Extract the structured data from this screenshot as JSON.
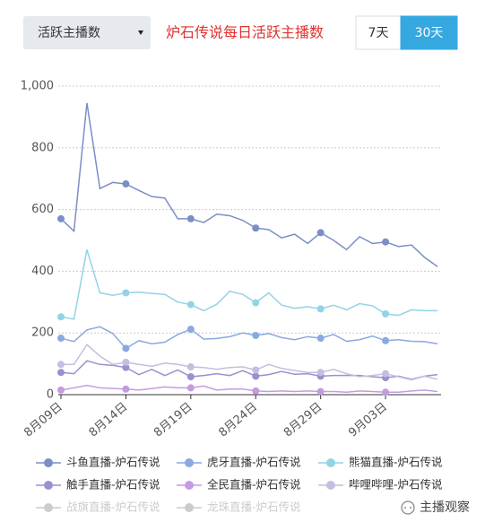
{
  "controls": {
    "dropdown": "活跃主播数",
    "buttons": [
      "7天",
      "30天"
    ],
    "active_button": 1
  },
  "watermark": "主播观察",
  "chart_data": {
    "type": "line",
    "title": "炉石传说每日活跃主播数",
    "categories": [
      "8月09日",
      null,
      null,
      null,
      null,
      "8月14日",
      null,
      null,
      null,
      null,
      "8月19日",
      null,
      null,
      null,
      null,
      "8月24日",
      null,
      null,
      null,
      null,
      "8月29日",
      null,
      null,
      null,
      null,
      "9月03日",
      null,
      null,
      null,
      null
    ],
    "ylim": [
      0,
      1000
    ],
    "yticks": [
      0,
      200,
      400,
      600,
      800,
      {
        "value": 1000,
        "label": "1,000"
      }
    ],
    "grid": true,
    "series": [
      {
        "name": "斗鱼直播-炉石传说",
        "color": "#7b8fc6",
        "values": [
          570,
          530,
          945,
          668,
          688,
          683,
          662,
          642,
          637,
          570,
          570,
          558,
          585,
          580,
          565,
          540,
          535,
          508,
          520,
          490,
          525,
          500,
          470,
          512,
          490,
          495,
          480,
          485,
          445,
          415
        ]
      },
      {
        "name": "虎牙直播-炉石传说",
        "color": "#8aa9e0",
        "values": [
          183,
          172,
          210,
          220,
          198,
          150,
          175,
          165,
          170,
          195,
          212,
          180,
          182,
          188,
          200,
          192,
          198,
          185,
          178,
          188,
          183,
          195,
          173,
          178,
          190,
          175,
          178,
          173,
          172,
          165
        ]
      },
      {
        "name": "熊猫直播-炉石传说",
        "color": "#93d3e6",
        "values": [
          252,
          245,
          470,
          330,
          322,
          330,
          332,
          328,
          325,
          300,
          292,
          272,
          293,
          335,
          325,
          298,
          330,
          290,
          280,
          285,
          278,
          290,
          275,
          295,
          288,
          262,
          257,
          275,
          272,
          272
        ]
      },
      {
        "name": "触手直播-炉石传说",
        "color": "#9c8fd0",
        "values": [
          72,
          68,
          110,
          98,
          95,
          88,
          65,
          82,
          62,
          80,
          58,
          62,
          68,
          62,
          78,
          60,
          65,
          75,
          66,
          68,
          60,
          62,
          62,
          62,
          58,
          55,
          60,
          50,
          60,
          65
        ]
      },
      {
        "name": "全民直播-炉石传说",
        "color": "#c59be0",
        "values": [
          15,
          22,
          30,
          22,
          20,
          18,
          15,
          20,
          25,
          22,
          22,
          28,
          15,
          18,
          18,
          12,
          10,
          12,
          10,
          12,
          10,
          10,
          8,
          12,
          10,
          8,
          8,
          12,
          15,
          10
        ]
      },
      {
        "name": "哔哩哔哩-炉石传说",
        "color": "#c4bedf",
        "values": [
          98,
          98,
          162,
          125,
          98,
          105,
          98,
          92,
          102,
          98,
          90,
          88,
          82,
          88,
          90,
          80,
          98,
          85,
          78,
          72,
          72,
          82,
          68,
          58,
          62,
          68,
          58,
          48,
          60,
          50
        ]
      }
    ],
    "legend_disabled": {
      "names": [
        "战旗直播-炉石传说",
        "龙珠直播-炉石传说"
      ],
      "color": "#cccccc"
    }
  }
}
